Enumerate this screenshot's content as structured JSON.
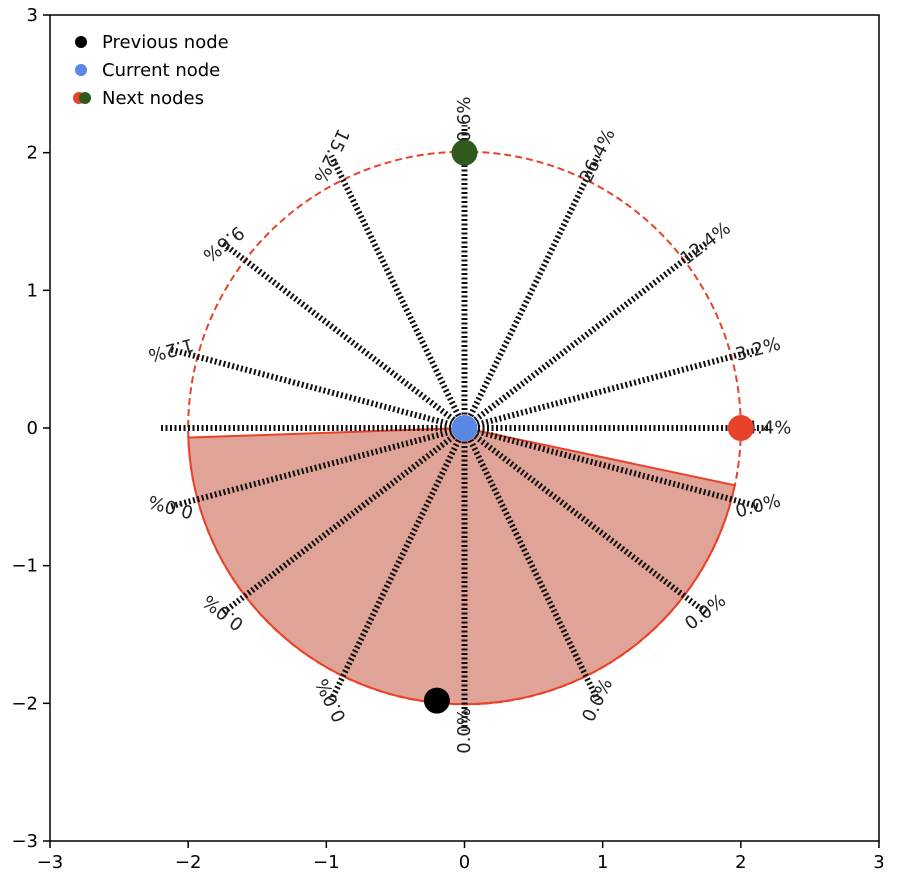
{
  "chart_data": {
    "type": "scatter",
    "xlim": [
      -3,
      3
    ],
    "ylim": [
      -3,
      3
    ],
    "xticks": [
      "−3",
      "−2",
      "−1",
      "0",
      "1",
      "2",
      "3"
    ],
    "yticks": [
      "3",
      "2",
      "1",
      "0",
      "−1",
      "−2",
      "−3"
    ],
    "grid": false,
    "legend_position": "top-left",
    "circle": {
      "center": [
        0,
        0
      ],
      "radius": 2,
      "color": "#e8432a"
    },
    "legend": [
      {
        "label": "Previous node",
        "colors": [
          "#000000"
        ]
      },
      {
        "label": "Current node",
        "colors": [
          "#5a87e6"
        ]
      },
      {
        "label": "Next nodes",
        "colors": [
          "#e8432a",
          "#2f5a1c"
        ]
      }
    ],
    "nodes": {
      "previous": {
        "x": -0.2,
        "y": -1.98,
        "color": "#000000"
      },
      "current": {
        "x": 0,
        "y": 0,
        "color": "#5a87e6"
      },
      "next": [
        {
          "x": 2.0,
          "y": 0.0,
          "color": "#e8432a"
        },
        {
          "x": 0.0,
          "y": 2.0,
          "color": "#2f5a1c"
        }
      ]
    },
    "excluded_sector": {
      "from_deg": 182,
      "to_deg": 348,
      "fill": "#e0a397",
      "edge": "#e8432a"
    },
    "directions": [
      {
        "angle_deg": 0,
        "label": "4.4%",
        "label_radius": 2.2,
        "label_rotation": 0
      },
      {
        "angle_deg": 15,
        "label": "3.2%",
        "label_radius": 2.2,
        "label_rotation": -15
      },
      {
        "angle_deg": 37.5,
        "label": "12.4%",
        "label_radius": 2.2,
        "label_rotation": -37.5
      },
      {
        "angle_deg": 64,
        "label": "26.4%",
        "label_radius": 2.2,
        "label_rotation": -64
      },
      {
        "angle_deg": 90,
        "label": "30.6%",
        "label_radius": 2.2,
        "label_rotation": -90
      },
      {
        "angle_deg": 116,
        "label": "15.2%",
        "label_radius": 2.2,
        "label_rotation": -244
      },
      {
        "angle_deg": 142.5,
        "label": "9.6%",
        "label_radius": 2.2,
        "label_rotation": -217.5
      },
      {
        "angle_deg": 165,
        "label": "1.2%",
        "label_radius": 2.2,
        "label_rotation": -195
      },
      {
        "angle_deg": 180,
        "label": "",
        "label_radius": 2.2,
        "label_rotation": 0
      },
      {
        "angle_deg": 195,
        "label": "0.0%",
        "label_radius": 2.2,
        "label_rotation": -165
      },
      {
        "angle_deg": 217.5,
        "label": "0.0%",
        "label_radius": 2.2,
        "label_rotation": -142.5
      },
      {
        "angle_deg": 244,
        "label": "0.0%",
        "label_radius": 2.2,
        "label_rotation": -116
      },
      {
        "angle_deg": 270,
        "label": "0.0%",
        "label_radius": 2.2,
        "label_rotation": -90
      },
      {
        "angle_deg": 296,
        "label": "0.0%",
        "label_radius": 2.2,
        "label_rotation": -64
      },
      {
        "angle_deg": 322.5,
        "label": "0.0%",
        "label_radius": 2.2,
        "label_rotation": -37.5
      },
      {
        "angle_deg": 345,
        "label": "0.0%",
        "label_radius": 2.2,
        "label_rotation": -15
      }
    ]
  }
}
